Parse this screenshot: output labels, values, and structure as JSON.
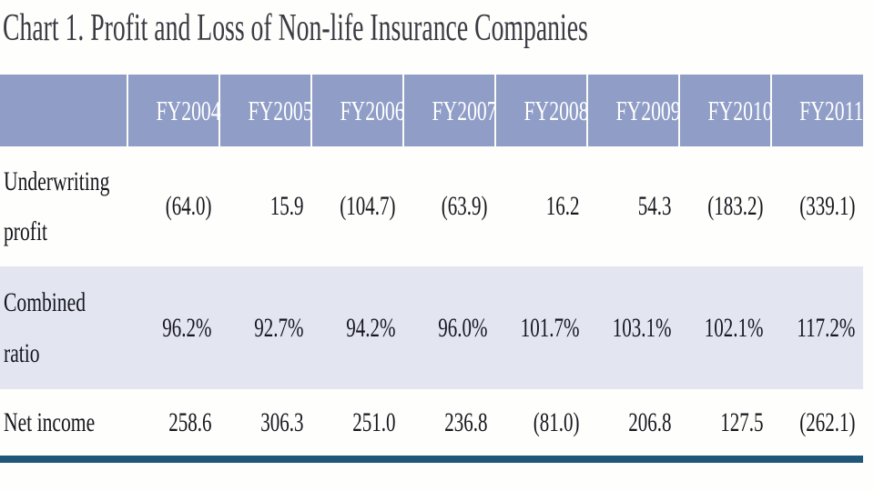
{
  "title": "Chart 1. Profit and Loss of Non-life Insurance Companies",
  "chart_data": {
    "type": "table",
    "title": "Chart 1. Profit and Loss of Non-life Insurance Companies",
    "columns": [
      "FY2004",
      "FY2005",
      "FY2006",
      "FY2007",
      "FY2008",
      "FY2009",
      "FY2010",
      "FY2011"
    ],
    "rows": [
      {
        "label": "Underwriting profit",
        "label_lines": [
          "Underwriting",
          "profit"
        ],
        "values": [
          "(64.0)",
          "15.9",
          "(104.7)",
          "(63.9)",
          "16.2",
          "54.3",
          "(183.2)",
          "(339.1)"
        ]
      },
      {
        "label": "Combined ratio",
        "label_lines": [
          "Combined",
          "ratio"
        ],
        "values": [
          "96.2%",
          "92.7%",
          "94.2%",
          "96.0%",
          "101.7%",
          "103.1%",
          "102.1%",
          "117.2%"
        ]
      },
      {
        "label": "Net income",
        "label_lines": [
          "Net income"
        ],
        "values": [
          "258.6",
          "306.3",
          "251.0",
          "236.8",
          "(81.0)",
          "206.8",
          "127.5",
          "(262.1)"
        ]
      }
    ]
  },
  "colors": {
    "header_bg": "#8f9dc7",
    "header_text": "#ffffff",
    "alt_row_bg": "#e3e5f1",
    "bottom_rule": "#1f567a",
    "title_text": "#3b3b44",
    "body_text": "#16161e"
  }
}
